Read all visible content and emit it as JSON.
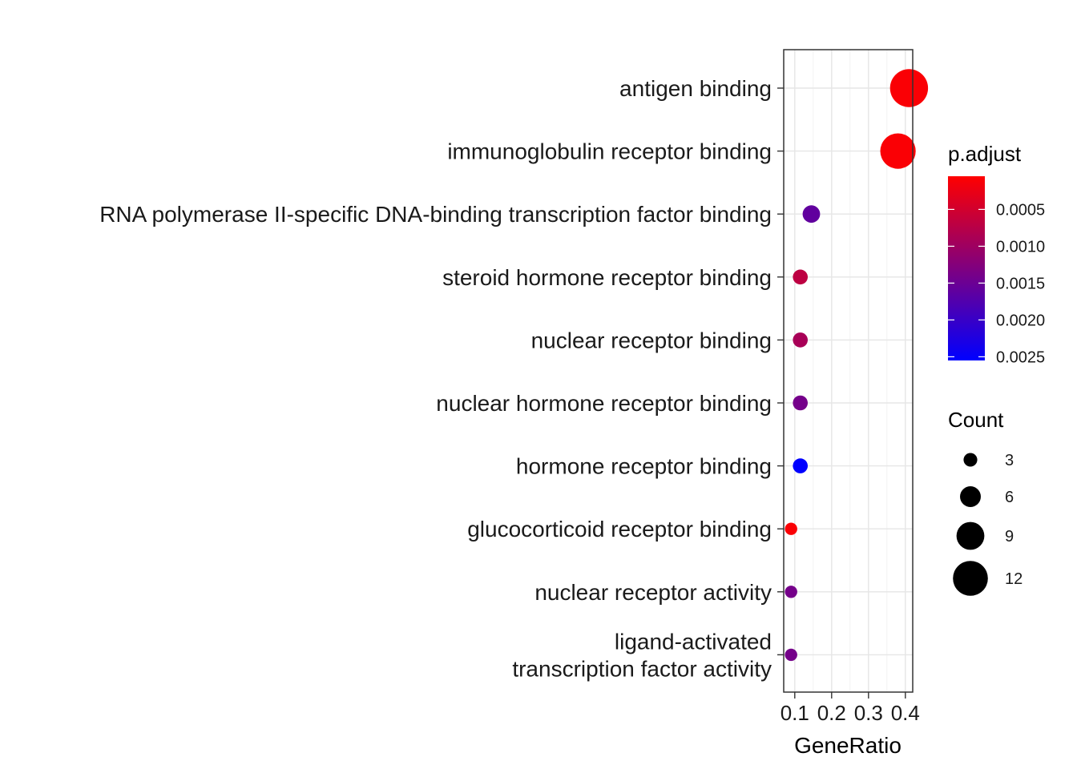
{
  "chart_data": {
    "type": "scatter",
    "xlabel": "GeneRatio",
    "ylabel": "",
    "xlim": [
      0.07,
      0.42
    ],
    "xticks": [
      0.1,
      0.2,
      0.3,
      0.4
    ],
    "xtick_labels": [
      "0.1",
      "0.2",
      "0.3",
      "0.4"
    ],
    "grid": true,
    "points": [
      {
        "term": [
          "antigen binding"
        ],
        "x": 0.41,
        "count": 12,
        "p_adjust": 0.0001
      },
      {
        "term": [
          "immunoglobulin receptor binding"
        ],
        "x": 0.38,
        "count": 11,
        "p_adjust": 0.0001
      },
      {
        "term": [
          "RNA polymerase II-specific DNA-binding transcription factor binding"
        ],
        "x": 0.145,
        "count": 4,
        "p_adjust": 0.0016
      },
      {
        "term": [
          "steroid hormone receptor binding"
        ],
        "x": 0.115,
        "count": 3,
        "p_adjust": 0.0007
      },
      {
        "term": [
          "nuclear receptor binding"
        ],
        "x": 0.115,
        "count": 3,
        "p_adjust": 0.0009
      },
      {
        "term": [
          "nuclear hormone receptor binding"
        ],
        "x": 0.115,
        "count": 3,
        "p_adjust": 0.0014
      },
      {
        "term": [
          "hormone receptor binding"
        ],
        "x": 0.115,
        "count": 3,
        "p_adjust": 0.0026
      },
      {
        "term": [
          "glucocorticoid receptor binding"
        ],
        "x": 0.09,
        "count": 2,
        "p_adjust": 0.0001
      },
      {
        "term": [
          "nuclear receptor activity"
        ],
        "x": 0.09,
        "count": 2,
        "p_adjust": 0.0014
      },
      {
        "term": [
          "ligand-activated",
          "transcription factor activity"
        ],
        "x": 0.09,
        "count": 2,
        "p_adjust": 0.0014
      }
    ],
    "color_legend": {
      "title": "p.adjust",
      "min": 5e-05,
      "max": 0.00255,
      "low_color": "#ff0000",
      "high_color": "#0000ff",
      "ticks": [
        0.0005,
        0.001,
        0.0015,
        0.002,
        0.0025
      ],
      "tick_labels": [
        "0.0005",
        "0.0010",
        "0.0015",
        "0.0020",
        "0.0025"
      ]
    },
    "size_legend": {
      "title": "Count",
      "values": [
        3,
        6,
        9,
        12
      ],
      "labels": [
        "3",
        "6",
        "9",
        "12"
      ]
    }
  }
}
